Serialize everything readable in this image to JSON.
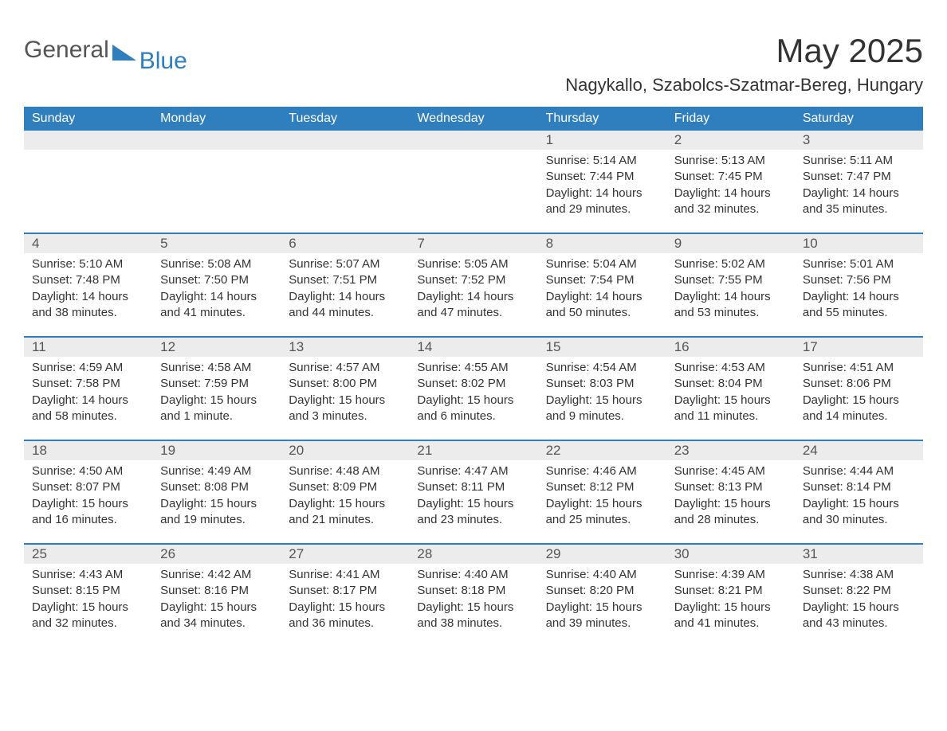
{
  "brand": {
    "part1": "General",
    "part2": "Blue"
  },
  "title": "May 2025",
  "location": "Nagykallo, Szabolcs-Szatmar-Bereg, Hungary",
  "colors": {
    "header_bg": "#2f7fbf",
    "header_text": "#ffffff",
    "daybar_bg": "#ececec",
    "body_text": "#333333",
    "week_divider": "#2f7fbf",
    "page_bg": "#ffffff"
  },
  "typography": {
    "title_fontsize": 42,
    "location_fontsize": 22,
    "weekday_fontsize": 16,
    "daynum_fontsize": 17,
    "body_fontsize": 15
  },
  "calendar": {
    "weekdays": [
      "Sunday",
      "Monday",
      "Tuesday",
      "Wednesday",
      "Thursday",
      "Friday",
      "Saturday"
    ],
    "weeks": [
      [
        null,
        null,
        null,
        null,
        {
          "n": "1",
          "sunrise": "5:14 AM",
          "sunset": "7:44 PM",
          "daylight": "14 hours and 29 minutes."
        },
        {
          "n": "2",
          "sunrise": "5:13 AM",
          "sunset": "7:45 PM",
          "daylight": "14 hours and 32 minutes."
        },
        {
          "n": "3",
          "sunrise": "5:11 AM",
          "sunset": "7:47 PM",
          "daylight": "14 hours and 35 minutes."
        }
      ],
      [
        {
          "n": "4",
          "sunrise": "5:10 AM",
          "sunset": "7:48 PM",
          "daylight": "14 hours and 38 minutes."
        },
        {
          "n": "5",
          "sunrise": "5:08 AM",
          "sunset": "7:50 PM",
          "daylight": "14 hours and 41 minutes."
        },
        {
          "n": "6",
          "sunrise": "5:07 AM",
          "sunset": "7:51 PM",
          "daylight": "14 hours and 44 minutes."
        },
        {
          "n": "7",
          "sunrise": "5:05 AM",
          "sunset": "7:52 PM",
          "daylight": "14 hours and 47 minutes."
        },
        {
          "n": "8",
          "sunrise": "5:04 AM",
          "sunset": "7:54 PM",
          "daylight": "14 hours and 50 minutes."
        },
        {
          "n": "9",
          "sunrise": "5:02 AM",
          "sunset": "7:55 PM",
          "daylight": "14 hours and 53 minutes."
        },
        {
          "n": "10",
          "sunrise": "5:01 AM",
          "sunset": "7:56 PM",
          "daylight": "14 hours and 55 minutes."
        }
      ],
      [
        {
          "n": "11",
          "sunrise": "4:59 AM",
          "sunset": "7:58 PM",
          "daylight": "14 hours and 58 minutes."
        },
        {
          "n": "12",
          "sunrise": "4:58 AM",
          "sunset": "7:59 PM",
          "daylight": "15 hours and 1 minute."
        },
        {
          "n": "13",
          "sunrise": "4:57 AM",
          "sunset": "8:00 PM",
          "daylight": "15 hours and 3 minutes."
        },
        {
          "n": "14",
          "sunrise": "4:55 AM",
          "sunset": "8:02 PM",
          "daylight": "15 hours and 6 minutes."
        },
        {
          "n": "15",
          "sunrise": "4:54 AM",
          "sunset": "8:03 PM",
          "daylight": "15 hours and 9 minutes."
        },
        {
          "n": "16",
          "sunrise": "4:53 AM",
          "sunset": "8:04 PM",
          "daylight": "15 hours and 11 minutes."
        },
        {
          "n": "17",
          "sunrise": "4:51 AM",
          "sunset": "8:06 PM",
          "daylight": "15 hours and 14 minutes."
        }
      ],
      [
        {
          "n": "18",
          "sunrise": "4:50 AM",
          "sunset": "8:07 PM",
          "daylight": "15 hours and 16 minutes."
        },
        {
          "n": "19",
          "sunrise": "4:49 AM",
          "sunset": "8:08 PM",
          "daylight": "15 hours and 19 minutes."
        },
        {
          "n": "20",
          "sunrise": "4:48 AM",
          "sunset": "8:09 PM",
          "daylight": "15 hours and 21 minutes."
        },
        {
          "n": "21",
          "sunrise": "4:47 AM",
          "sunset": "8:11 PM",
          "daylight": "15 hours and 23 minutes."
        },
        {
          "n": "22",
          "sunrise": "4:46 AM",
          "sunset": "8:12 PM",
          "daylight": "15 hours and 25 minutes."
        },
        {
          "n": "23",
          "sunrise": "4:45 AM",
          "sunset": "8:13 PM",
          "daylight": "15 hours and 28 minutes."
        },
        {
          "n": "24",
          "sunrise": "4:44 AM",
          "sunset": "8:14 PM",
          "daylight": "15 hours and 30 minutes."
        }
      ],
      [
        {
          "n": "25",
          "sunrise": "4:43 AM",
          "sunset": "8:15 PM",
          "daylight": "15 hours and 32 minutes."
        },
        {
          "n": "26",
          "sunrise": "4:42 AM",
          "sunset": "8:16 PM",
          "daylight": "15 hours and 34 minutes."
        },
        {
          "n": "27",
          "sunrise": "4:41 AM",
          "sunset": "8:17 PM",
          "daylight": "15 hours and 36 minutes."
        },
        {
          "n": "28",
          "sunrise": "4:40 AM",
          "sunset": "8:18 PM",
          "daylight": "15 hours and 38 minutes."
        },
        {
          "n": "29",
          "sunrise": "4:40 AM",
          "sunset": "8:20 PM",
          "daylight": "15 hours and 39 minutes."
        },
        {
          "n": "30",
          "sunrise": "4:39 AM",
          "sunset": "8:21 PM",
          "daylight": "15 hours and 41 minutes."
        },
        {
          "n": "31",
          "sunrise": "4:38 AM",
          "sunset": "8:22 PM",
          "daylight": "15 hours and 43 minutes."
        }
      ]
    ],
    "labels": {
      "sunrise": "Sunrise: ",
      "sunset": "Sunset: ",
      "daylight": "Daylight: "
    }
  }
}
